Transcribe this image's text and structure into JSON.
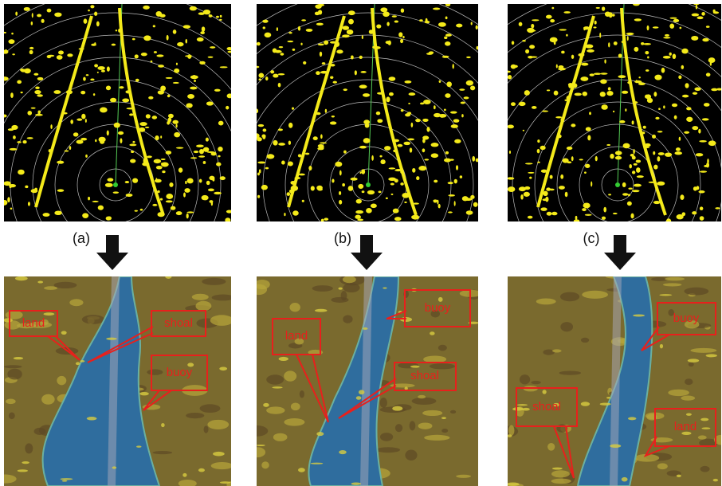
{
  "panels": [
    {
      "label": "(a)",
      "callouts": [
        {
          "text": "land"
        },
        {
          "text": "shoal"
        },
        {
          "text": "buoy"
        }
      ]
    },
    {
      "label": "(b)",
      "callouts": [
        {
          "text": "buoy"
        },
        {
          "text": "land"
        },
        {
          "text": "shoal"
        }
      ]
    },
    {
      "label": "(c)",
      "callouts": [
        {
          "text": "buoy"
        },
        {
          "text": "shoal"
        },
        {
          "text": "land"
        }
      ]
    }
  ]
}
